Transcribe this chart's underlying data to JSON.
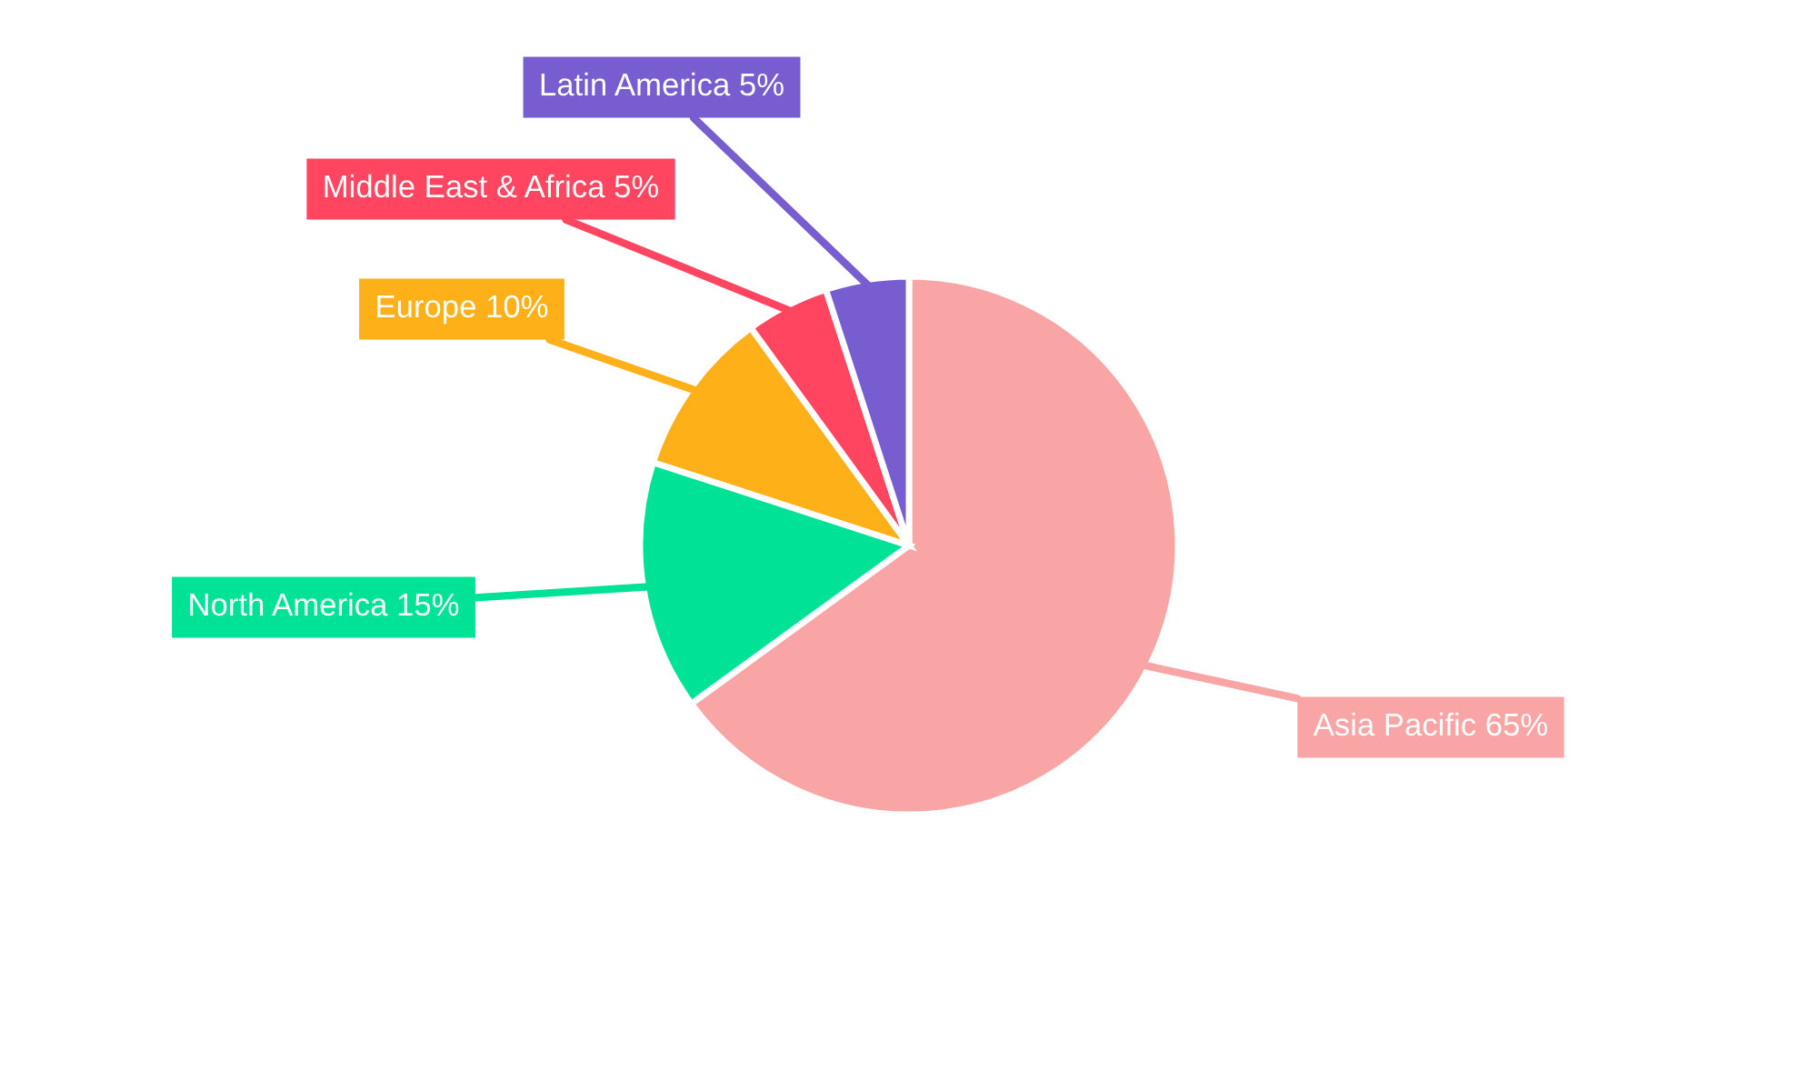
{
  "chart_data": {
    "type": "pie",
    "categories": [
      "Asia Pacific",
      "North America",
      "Europe",
      "Middle East & Africa",
      "Latin America"
    ],
    "values": [
      65,
      15,
      10,
      5,
      5
    ],
    "colors": [
      "#f9a5a5",
      "#00e396",
      "#feb019",
      "#ff4560",
      "#775dd0"
    ],
    "value_labels": [
      "65%",
      "15%",
      "10%",
      "5%",
      "5%"
    ],
    "legend": false
  }
}
